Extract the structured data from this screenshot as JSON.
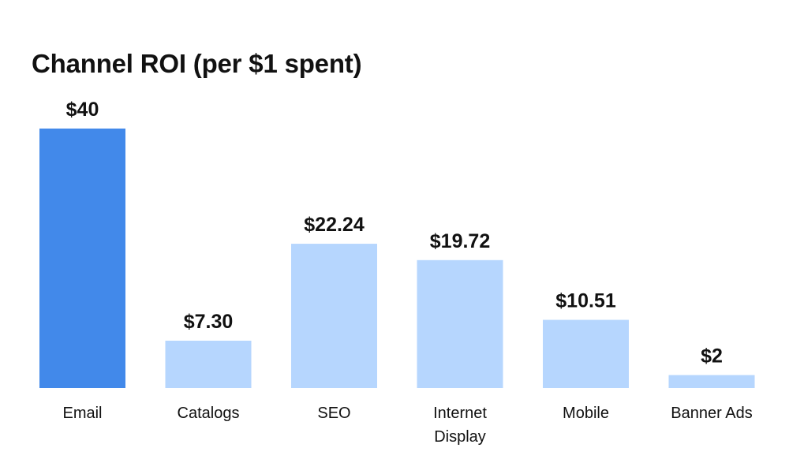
{
  "chart_data": {
    "type": "bar",
    "title": "Channel ROI (per $1 spent)",
    "xlabel": "",
    "ylabel": "",
    "ylim": [
      0,
      40
    ],
    "grid": false,
    "categories": [
      "Email",
      "Catalogs",
      "SEO",
      "Internet Display",
      "Mobile",
      "Banner Ads"
    ],
    "category_lines": [
      [
        "Email"
      ],
      [
        "Catalogs"
      ],
      [
        "SEO"
      ],
      [
        "Internet",
        "Display"
      ],
      [
        "Mobile"
      ],
      [
        "Banner Ads"
      ]
    ],
    "values": [
      40,
      7.3,
      22.24,
      19.72,
      10.51,
      2
    ],
    "value_labels": [
      "$40",
      "$7.30",
      "$22.24",
      "$19.72",
      "$10.51",
      "$2"
    ],
    "bar_colors": [
      "#4289ea",
      "#b6d6fe",
      "#b6d6fe",
      "#b6d6fe",
      "#b6d6fe",
      "#b6d6fe"
    ]
  }
}
